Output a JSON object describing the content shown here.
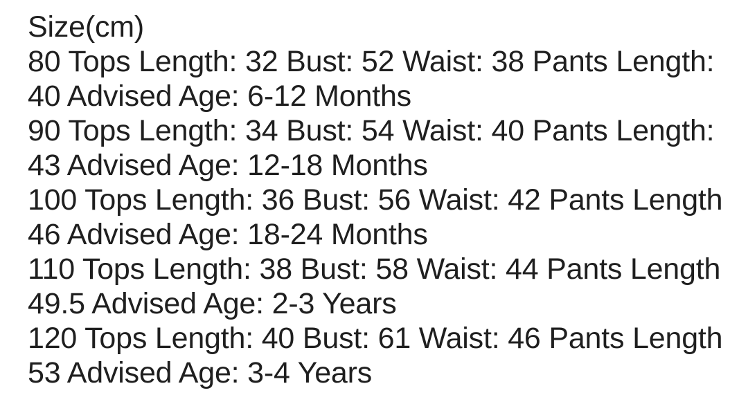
{
  "page": {
    "background_color": "#ffffff",
    "text_color": "#1f1f1f"
  },
  "size_chart": {
    "title": "Size(cm)",
    "columns": [
      "Size",
      "Tops Length",
      "Bust",
      "Waist",
      "Pants Length",
      "Advised Age"
    ],
    "rows": [
      {
        "size": "80",
        "tops_length": "32",
        "bust": "52",
        "waist": "38",
        "pants_length": "40",
        "advised_age": "6-12 Months"
      },
      {
        "size": "90",
        "tops_length": "34",
        "bust": "54",
        "waist": "40",
        "pants_length": "43",
        "advised_age": "12-18 Months"
      },
      {
        "size": "100",
        "tops_length": "36",
        "bust": "56",
        "waist": "42",
        "pants_length": "46",
        "advised_age": "18-24 Months"
      },
      {
        "size": "110",
        "tops_length": "38",
        "bust": "58",
        "waist": "44",
        "pants_length": "49.5",
        "advised_age": "2-3 Years"
      },
      {
        "size": "120",
        "tops_length": "40",
        "bust": "61",
        "waist": "46",
        "pants_length": "53",
        "advised_age": "3-4 Years"
      }
    ]
  },
  "display_lines": [
    "Size(cm)",
    "80 Tops Length: 32 Bust: 52 Waist: 38 Pants Length:",
    "40 Advised Age: 6-12 Months",
    "90 Tops Length: 34 Bust: 54 Waist: 40 Pants Length:",
    "43 Advised Age: 12-18 Months",
    "100 Tops Length: 36 Bust: 56 Waist: 42 Pants Length:",
    "46 Advised Age: 18-24 Months",
    "110 Tops Length: 38 Bust: 58 Waist: 44 Pants Length:",
    "49.5 Advised Age: 2-3 Years",
    "120 Tops Length: 40 Bust: 61 Waist: 46 Pants Length:",
    "53 Advised Age: 3-4 Years"
  ]
}
